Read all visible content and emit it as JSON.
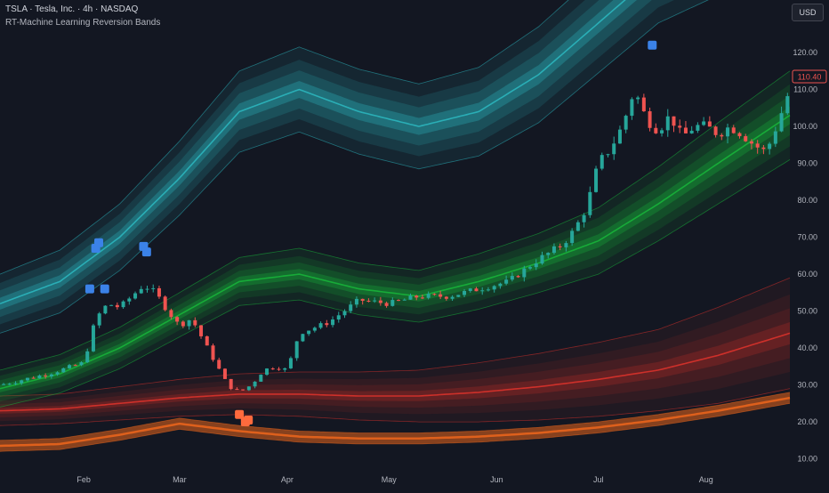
{
  "header": {
    "symbol_line": "TSLA · Tesla, Inc. · 4h · NASDAQ",
    "indicator_name": "RT-Machine Learning Reversion Bands"
  },
  "currency_label": "USD",
  "last_price_label": "110.40",
  "colors": {
    "background": "#131722",
    "up": "#26a69a",
    "down": "#ef5350",
    "upper_band": "#2bb5bd",
    "mid_band": "#17b33a",
    "lower_band": "#d9322b",
    "lowest_band": "#e8641c",
    "signal_high": "#3b82e8",
    "signal_low": "#ff6a3d",
    "axis_text": "#b2b5be"
  },
  "chart_data": {
    "type": "candlestick",
    "title": "",
    "xlabel": "",
    "ylabel": "",
    "ylim": [
      7,
      127
    ],
    "xlim": [
      0,
      132
    ],
    "grid": false,
    "y_ticks": [
      10,
      20,
      30,
      40,
      50,
      60,
      70,
      80,
      90,
      100,
      110,
      120
    ],
    "y_tick_labels": [
      "10.00",
      "20.00",
      "30.00",
      "40.00",
      "50.00",
      "60.00",
      "70.00",
      "80.00",
      "90.00",
      "100.00",
      "110.00",
      "120.00"
    ],
    "x_ticks": [
      14,
      30,
      48,
      65,
      83,
      100,
      118
    ],
    "x_tick_labels": [
      "Feb",
      "Mar",
      "Apr",
      "May",
      "Jun",
      "Jul",
      "Aug"
    ],
    "last_price": 110.4,
    "bands": {
      "x": [
        0,
        10,
        20,
        30,
        40,
        50,
        60,
        70,
        80,
        90,
        100,
        110,
        120,
        132
      ],
      "upper": {
        "color": "#2bb5bd",
        "center": [
          52,
          58,
          70,
          86,
          104,
          110,
          104,
          100,
          104,
          114,
          128,
          142,
          150,
          158
        ],
        "half_width": [
          8,
          8.5,
          9,
          10,
          11,
          11.5,
          11.5,
          11.5,
          12,
          13,
          13.5,
          14,
          14.5,
          15
        ]
      },
      "middle": {
        "color": "#17b33a",
        "center": [
          29,
          33,
          40,
          49,
          58,
          60,
          56,
          54,
          58,
          63,
          69,
          79,
          90,
          103
        ],
        "half_width": [
          5,
          5.2,
          5.6,
          6,
          6.5,
          7,
          7,
          7,
          7.5,
          8,
          9,
          10,
          11,
          12
        ]
      },
      "lower": {
        "color": "#d9322b",
        "center": [
          23,
          23.5,
          25,
          26.5,
          27.5,
          27.5,
          27,
          27,
          28,
          29.5,
          31.5,
          34,
          38,
          44
        ],
        "half_width": [
          4,
          4,
          4.5,
          5,
          5.5,
          6,
          6.5,
          7,
          8,
          9,
          10,
          11,
          13,
          15
        ]
      },
      "lowest": {
        "color": "#e8641c",
        "center": [
          13.5,
          14,
          16.5,
          19.5,
          17.5,
          16,
          15.5,
          15.5,
          16,
          17,
          18.5,
          20.5,
          23,
          26.5
        ],
        "half_width": [
          1.5,
          1.5,
          1.5,
          1.5,
          1.5,
          1.5,
          1.5,
          1.5,
          1.5,
          1.5,
          1.5,
          1.5,
          1.5,
          1.5
        ]
      }
    },
    "close_path": {
      "x": [
        0,
        8,
        14,
        16,
        18,
        20,
        22,
        24,
        26,
        28,
        30,
        32,
        34,
        36,
        38,
        40,
        42,
        44,
        46,
        48,
        50,
        55,
        60,
        65,
        70,
        75,
        80,
        85,
        90,
        94,
        96,
        98,
        100,
        102,
        104,
        106,
        108,
        110,
        112,
        114,
        116,
        118,
        120,
        122,
        124,
        126,
        128,
        130,
        132
      ],
      "y": [
        30,
        33,
        36,
        48,
        52,
        51,
        54,
        57,
        55,
        50,
        46,
        48,
        42,
        36,
        30,
        28,
        30,
        34,
        35,
        34,
        44,
        47,
        53,
        52,
        54,
        54,
        56,
        58,
        64,
        68,
        72,
        78,
        90,
        94,
        100,
        110,
        102,
        99,
        103,
        97,
        100,
        100,
        98,
        100,
        98,
        95,
        93,
        101,
        110
      ]
    },
    "signals": [
      {
        "type": "high",
        "x": 15,
        "y": 56
      },
      {
        "type": "high",
        "x": 16,
        "y": 67
      },
      {
        "type": "high",
        "x": 16.5,
        "y": 68.5
      },
      {
        "type": "high",
        "x": 17.5,
        "y": 56
      },
      {
        "type": "high",
        "x": 24,
        "y": 67.5
      },
      {
        "type": "high",
        "x": 24.5,
        "y": 66
      },
      {
        "type": "high",
        "x": 109,
        "y": 122
      },
      {
        "type": "low",
        "x": 40,
        "y": 22
      },
      {
        "type": "low",
        "x": 41,
        "y": 20
      },
      {
        "type": "low",
        "x": 41.5,
        "y": 20.5
      }
    ]
  }
}
